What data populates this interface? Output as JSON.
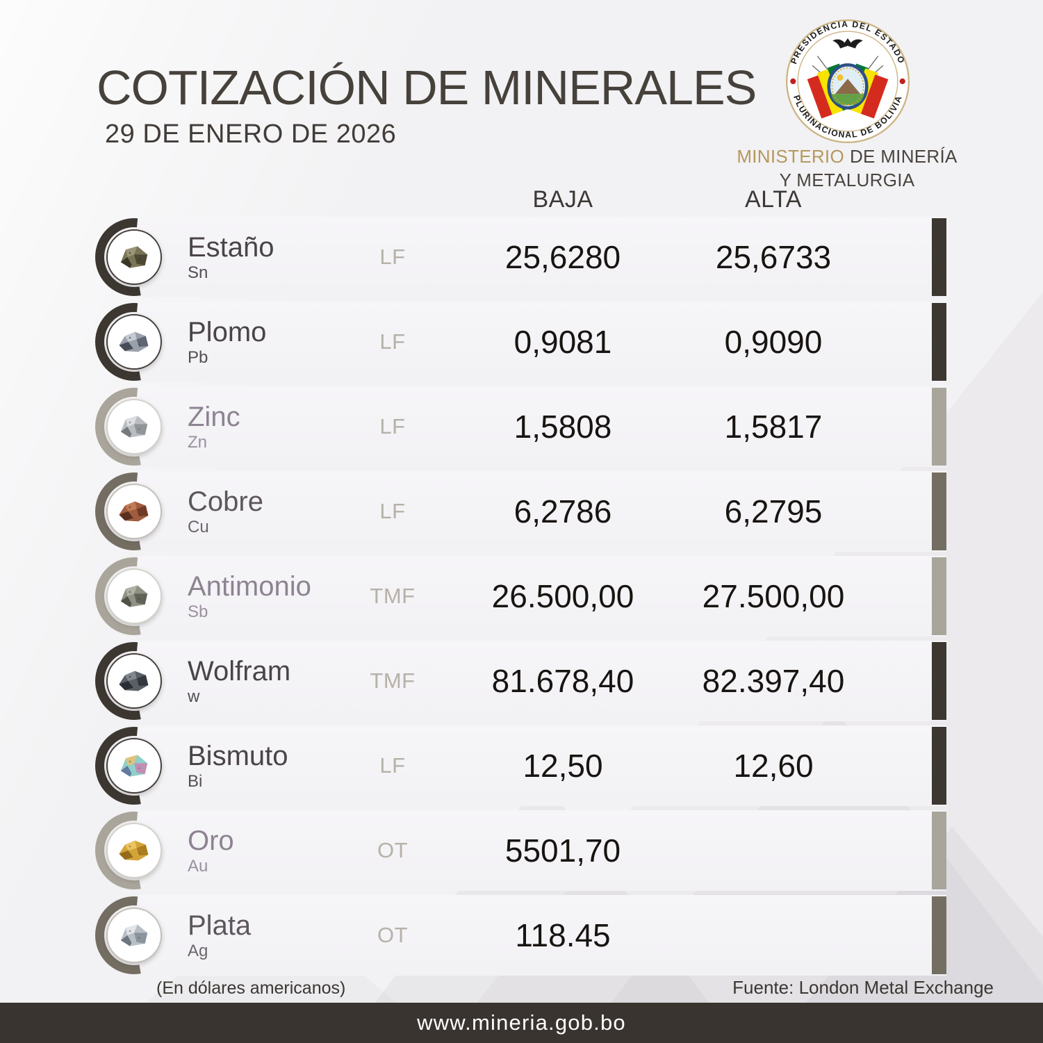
{
  "header": {
    "title": "COTIZACIÓN DE MINERALES",
    "date": "29 DE ENERO DE 2026",
    "seal_top": "PRESIDENCIA DEL ESTADO",
    "seal_bottom": "PLURINACIONAL DE BOLIVIA",
    "ministry_accent": "MINISTERIO",
    "ministry_rest": "DE MINERÍA",
    "ministry_line2": "Y METALURGIA"
  },
  "table": {
    "columns": {
      "low": "BAJA",
      "high": "ALTA"
    },
    "rows": [
      {
        "name": "Estaño",
        "symbol": "Sn",
        "unit": "LF",
        "low": "25,6280",
        "high": "25,6733",
        "tone": "dark",
        "rock_colors": [
          "#7a7456",
          "#4a462f",
          "#9b9478",
          "#2e2b1d"
        ]
      },
      {
        "name": "Plomo",
        "symbol": "Pb",
        "unit": "LF",
        "low": "0,9081",
        "high": "0,9090",
        "tone": "dark",
        "rock_colors": [
          "#9aa0ab",
          "#5d6470",
          "#c6cad2",
          "#3a3f49"
        ]
      },
      {
        "name": "Zinc",
        "symbol": "Zn",
        "unit": "LF",
        "low": "1,5808",
        "high": "1,5817",
        "tone": "light",
        "rock_colors": [
          "#b9bcc0",
          "#8e9296",
          "#dcdee1",
          "#6a6e73"
        ]
      },
      {
        "name": "Cobre",
        "symbol": "Cu",
        "unit": "LF",
        "low": "6,2786",
        "high": "6,2795",
        "tone": "medium",
        "rock_colors": [
          "#a05c3e",
          "#6e3a26",
          "#c07a55",
          "#4e2718"
        ]
      },
      {
        "name": "Antimonio",
        "symbol": "Sb",
        "unit": "TMF",
        "low": "26.500,00",
        "high": "27.500,00",
        "tone": "light",
        "rock_colors": [
          "#8f9183",
          "#5f6155",
          "#b0b2a4",
          "#454740"
        ]
      },
      {
        "name": "Wolfram",
        "symbol": "w",
        "unit": "TMF",
        "low": "81.678,40",
        "high": "82.397,40",
        "tone": "dark",
        "rock_colors": [
          "#5a5f66",
          "#33373d",
          "#83888f",
          "#22252a"
        ]
      },
      {
        "name": "Bismuto",
        "symbol": "Bi",
        "unit": "LF",
        "low": "12,50",
        "high": "12,60",
        "tone": "dark",
        "rock_colors": [
          "#8fd0c9",
          "#c48bb1",
          "#e0c27a",
          "#5a6a9a"
        ]
      },
      {
        "name": "Oro",
        "symbol": "Au",
        "unit": "OT",
        "low": "5501,70",
        "high": "",
        "tone": "light",
        "rock_colors": [
          "#d4a438",
          "#a97c1f",
          "#e8c462",
          "#8a6318"
        ]
      },
      {
        "name": "Plata",
        "symbol": "Ag",
        "unit": "OT",
        "low": "118.45",
        "high": "",
        "tone": "medium",
        "rock_colors": [
          "#b9bfc6",
          "#88909a",
          "#e2e6ea",
          "#5f6770"
        ]
      }
    ]
  },
  "footer": {
    "note": "(En dólares americanos)",
    "source": "Fuente: London Metal Exchange",
    "website": "www.mineria.gob.bo"
  },
  "colors": {
    "accent_dark": "#3d3731",
    "accent_medium": "#746d62",
    "accent_light": "#a9a59a",
    "gold": "#b5985c",
    "seal_ring": "#cbb382",
    "seal_dot_red": "#c22020",
    "bottom_bar": "#393430",
    "page_background": "#f2f1f3",
    "row_background": "#f4f3f6",
    "value_text": "#171411"
  }
}
